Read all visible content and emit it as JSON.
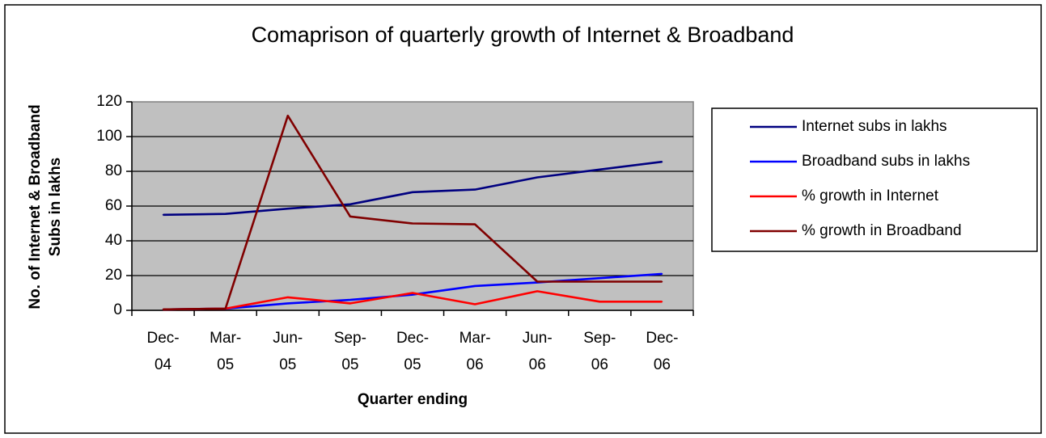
{
  "chart_data": {
    "type": "line",
    "title": "Comaprison of quarterly growth of Internet & Broadband",
    "xlabel": "Quarter ending",
    "ylabel": [
      "No. of Internet & Broadband",
      "Subs in lakhs"
    ],
    "categories": [
      [
        "Dec-",
        "04"
      ],
      [
        "Mar-",
        "05"
      ],
      [
        "Jun-",
        "05"
      ],
      [
        "Sep-",
        "05"
      ],
      [
        "Dec-",
        "05"
      ],
      [
        "Mar-",
        "06"
      ],
      [
        "Jun-",
        "06"
      ],
      [
        "Sep-",
        "06"
      ],
      [
        "Dec-",
        "06"
      ]
    ],
    "ylim": [
      0,
      120
    ],
    "yticks": [
      "0",
      "20",
      "40",
      "60",
      "80",
      "100",
      "120"
    ],
    "grid": true,
    "legend_position": "right",
    "series": [
      {
        "name": "Internet subs in lakhs",
        "color": "#000080",
        "values": [
          55,
          55.5,
          58.5,
          61,
          68,
          69.5,
          76.5,
          81,
          85.5
        ]
      },
      {
        "name": "Broadband subs in lakhs",
        "color": "#0000ff",
        "values": [
          0.5,
          1,
          4,
          6,
          9,
          14,
          16,
          18.5,
          21
        ]
      },
      {
        "name": "% growth in Internet",
        "color": "#ff0000",
        "values": [
          0.5,
          1,
          7.5,
          4,
          10,
          3.5,
          11,
          5,
          5
        ]
      },
      {
        "name": "% growth in Broadband",
        "color": "#800000",
        "values": [
          0.5,
          1,
          112,
          54,
          50,
          49.5,
          16.5,
          16.5,
          16.5
        ]
      }
    ]
  }
}
